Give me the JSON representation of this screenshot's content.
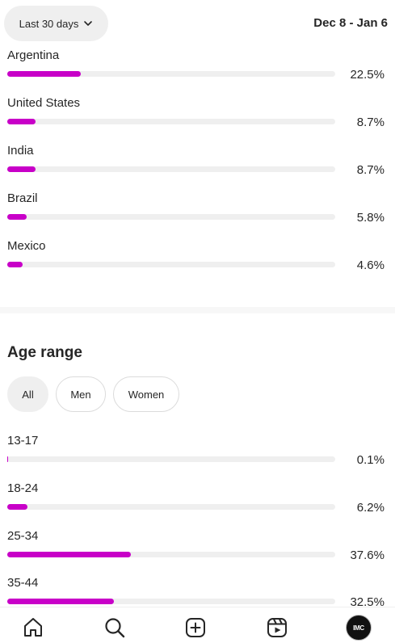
{
  "header": {
    "period_label": "Last 30 days",
    "date_range": "Dec 8 - Jan 6"
  },
  "countries": [
    {
      "label": "Argentina",
      "value": "22.5%",
      "percent": 22.5
    },
    {
      "label": "United States",
      "value": "8.7%",
      "percent": 8.7
    },
    {
      "label": "India",
      "value": "8.7%",
      "percent": 8.7
    },
    {
      "label": "Brazil",
      "value": "5.8%",
      "percent": 5.8
    },
    {
      "label": "Mexico",
      "value": "4.6%",
      "percent": 4.6
    }
  ],
  "age_range": {
    "title": "Age range",
    "filters": {
      "all": "All",
      "men": "Men",
      "women": "Women",
      "selected": "All"
    },
    "rows": [
      {
        "label": "13-17",
        "value": "0.1%",
        "percent": 0.1
      },
      {
        "label": "18-24",
        "value": "6.2%",
        "percent": 6.2
      },
      {
        "label": "25-34",
        "value": "37.6%",
        "percent": 37.6
      },
      {
        "label": "35-44",
        "value": "32.5%",
        "percent": 32.5
      }
    ]
  },
  "navbar": {
    "items": [
      "home-icon",
      "search-icon",
      "create-icon",
      "reels-icon",
      "profile-avatar"
    ],
    "avatar_text": "IMC"
  },
  "colors": {
    "accent": "#c800c8",
    "track": "#efefef"
  }
}
